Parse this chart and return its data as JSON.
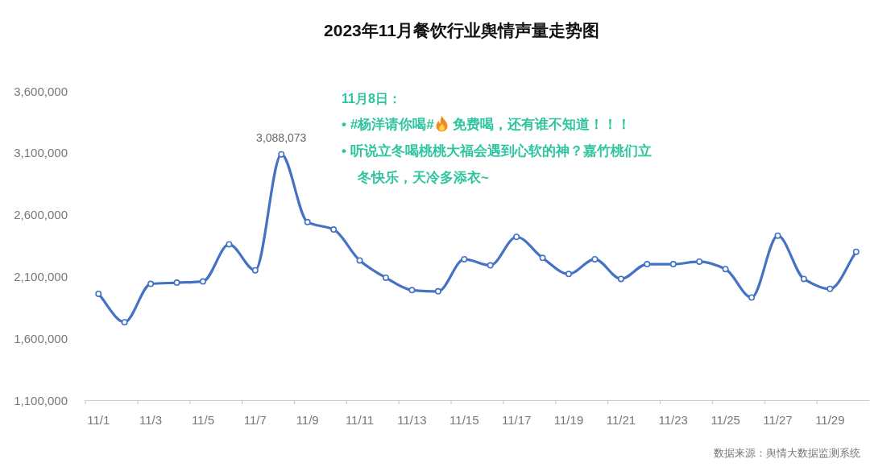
{
  "chart_data": {
    "type": "line",
    "title": "2023年11月餐饮行业舆情声量走势图",
    "categories": [
      "11/1",
      null,
      "11/3",
      null,
      "11/5",
      null,
      "11/7",
      null,
      "11/9",
      null,
      "11/11",
      null,
      "11/13",
      null,
      "11/15",
      null,
      "11/17",
      null,
      "11/19",
      null,
      "11/21",
      null,
      "11/23",
      null,
      "11/25",
      null,
      "11/27",
      null,
      "11/29",
      null
    ],
    "series": [
      {
        "color": "#4472c4",
        "values": [
          1960000,
          1730000,
          2040000,
          2050000,
          2060000,
          2360000,
          2150000,
          3088073,
          2540000,
          2480000,
          2230000,
          2090000,
          1990000,
          1980000,
          2240000,
          2190000,
          2420000,
          2250000,
          2120000,
          2240000,
          2080000,
          2200000,
          2200000,
          2220000,
          2160000,
          1930000,
          2430000,
          2080000,
          2000000,
          2300000
        ],
        "value_labels": [
          null,
          null,
          null,
          null,
          null,
          null,
          null,
          "3,088,073",
          null,
          null,
          null,
          null,
          null,
          null,
          null,
          null,
          null,
          null,
          null,
          null,
          null,
          null,
          null,
          null,
          null,
          null,
          null,
          null,
          null,
          null
        ]
      }
    ],
    "ylim": [
      1100000,
      3600000
    ],
    "yticks": [
      {
        "value": 1100000,
        "label": "1,100,000"
      },
      {
        "value": 1600000,
        "label": "1,600,000"
      },
      {
        "value": 2100000,
        "label": "2,100,000"
      },
      {
        "value": 2600000,
        "label": "2,600,000"
      },
      {
        "value": 3100000,
        "label": "3,100,000"
      },
      {
        "value": 3600000,
        "label": "3,600,000"
      }
    ],
    "marker": "circle",
    "line_style": "solid",
    "annotations": [
      "11月8日：",
      "• #杨洋请你喝# 免费喝，还有谁不知道！！！",
      "• 听说立冬喝桃桃大福会遇到心软的神？嘉竹桃们立冬快乐，天冷多添衣~",
      "数据来源：舆情大数据监测系统"
    ]
  }
}
